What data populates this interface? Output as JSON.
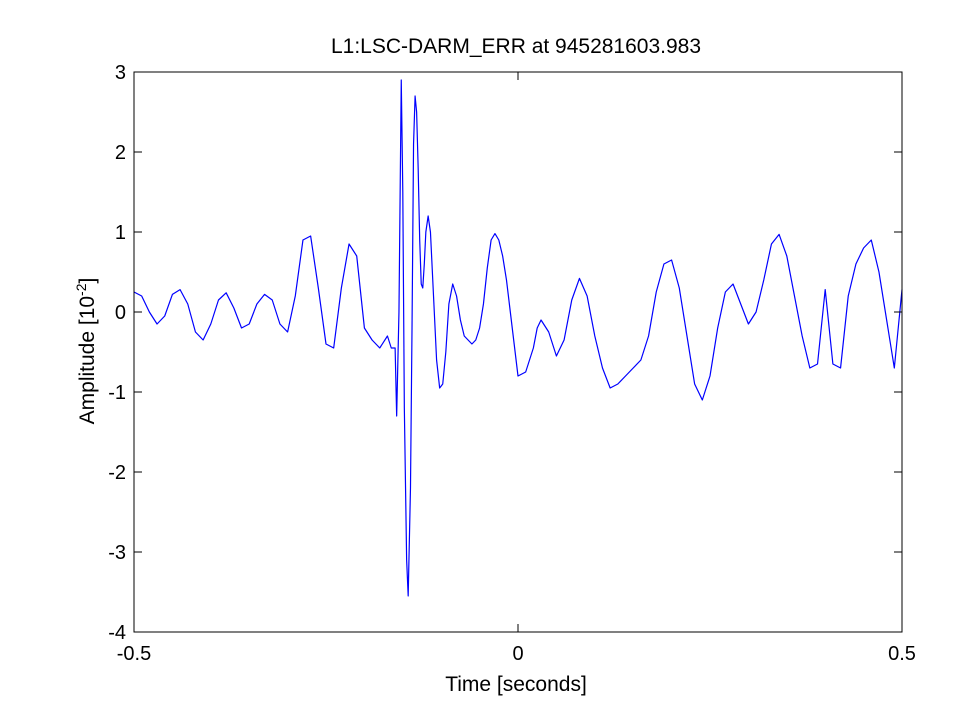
{
  "chart_data": {
    "type": "line",
    "title": "L1:LSC-DARM_ERR at 945281603.983",
    "xlabel": "Time [seconds]",
    "ylabel": {
      "base": "Amplitude [10",
      "exponent": "-2",
      "suffix": "]"
    },
    "xlim": [
      -0.5,
      0.5
    ],
    "ylim": [
      -4,
      3
    ],
    "xticks": [
      -0.5,
      0,
      0.5
    ],
    "xtick_labels": [
      "-0.5",
      "0",
      "0.5"
    ],
    "yticks": [
      -4,
      -3,
      -2,
      -1,
      0,
      1,
      2,
      3
    ],
    "ytick_labels": [
      "-4",
      "-3",
      "-2",
      "-1",
      "0",
      "1",
      "2",
      "3"
    ],
    "grid": false,
    "line_color": "#0000ff",
    "series": [
      {
        "x": [
          -0.5,
          -0.49,
          -0.48,
          -0.47,
          -0.46,
          -0.45,
          -0.44,
          -0.43,
          -0.42,
          -0.41,
          -0.4,
          -0.39,
          -0.38,
          -0.37,
          -0.36,
          -0.35,
          -0.34,
          -0.33,
          -0.32,
          -0.31,
          -0.3,
          -0.29,
          -0.28,
          -0.27,
          -0.26,
          -0.25,
          -0.24,
          -0.23,
          -0.22,
          -0.21,
          -0.2,
          -0.19,
          -0.18,
          -0.17,
          -0.165,
          -0.16,
          -0.158,
          -0.155,
          -0.152,
          -0.15,
          -0.148,
          -0.145,
          -0.143,
          -0.14,
          -0.138,
          -0.136,
          -0.134,
          -0.132,
          -0.13,
          -0.128,
          -0.126,
          -0.124,
          -0.122,
          -0.12,
          -0.117,
          -0.114,
          -0.11,
          -0.106,
          -0.102,
          -0.098,
          -0.094,
          -0.09,
          -0.085,
          -0.08,
          -0.075,
          -0.07,
          -0.065,
          -0.06,
          -0.055,
          -0.05,
          -0.045,
          -0.04,
          -0.035,
          -0.03,
          -0.025,
          -0.02,
          -0.015,
          -0.01,
          -0.005,
          0,
          0.01,
          0.02,
          0.025,
          0.03,
          0.04,
          0.05,
          0.06,
          0.07,
          0.08,
          0.09,
          0.1,
          0.11,
          0.12,
          0.13,
          0.14,
          0.15,
          0.16,
          0.17,
          0.18,
          0.19,
          0.2,
          0.21,
          0.22,
          0.23,
          0.24,
          0.25,
          0.26,
          0.27,
          0.28,
          0.29,
          0.3,
          0.31,
          0.32,
          0.33,
          0.34,
          0.35,
          0.36,
          0.37,
          0.38,
          0.39,
          0.4,
          0.41,
          0.42,
          0.43,
          0.44,
          0.45,
          0.46,
          0.47,
          0.48,
          0.49,
          0.5
        ],
        "y": [
          0.25,
          0.2,
          0.0,
          -0.15,
          -0.05,
          0.22,
          0.28,
          0.1,
          -0.25,
          -0.35,
          -0.15,
          0.15,
          0.24,
          0.05,
          -0.2,
          -0.15,
          0.1,
          0.22,
          0.15,
          -0.15,
          -0.25,
          0.2,
          0.9,
          0.95,
          0.3,
          -0.4,
          -0.45,
          0.3,
          0.85,
          0.7,
          -0.2,
          -0.35,
          -0.45,
          -0.3,
          -0.45,
          -0.45,
          -1.3,
          0.0,
          2.9,
          1.5,
          -1.2,
          -3.1,
          -3.55,
          -2.2,
          -0.2,
          2.1,
          2.7,
          2.5,
          1.8,
          0.9,
          0.35,
          0.3,
          0.6,
          1.0,
          1.2,
          1.0,
          0.2,
          -0.6,
          -0.95,
          -0.9,
          -0.5,
          0.1,
          0.35,
          0.2,
          -0.1,
          -0.3,
          -0.35,
          -0.4,
          -0.35,
          -0.2,
          0.1,
          0.55,
          0.9,
          0.98,
          0.9,
          0.7,
          0.4,
          0.0,
          -0.4,
          -0.8,
          -0.75,
          -0.45,
          -0.2,
          -0.1,
          -0.25,
          -0.55,
          -0.35,
          0.15,
          0.42,
          0.2,
          -0.3,
          -0.7,
          -0.95,
          -0.9,
          -0.8,
          -0.7,
          -0.6,
          -0.3,
          0.25,
          0.6,
          0.65,
          0.3,
          -0.3,
          -0.9,
          -1.1,
          -0.8,
          -0.2,
          0.25,
          0.35,
          0.1,
          -0.15,
          0.0,
          0.4,
          0.85,
          0.97,
          0.7,
          0.2,
          -0.3,
          -0.7,
          -0.65,
          0.28,
          -0.65,
          -0.7,
          0.2,
          0.6,
          0.8,
          0.9,
          0.5,
          -0.1,
          -0.7,
          0.28
        ]
      }
    ]
  }
}
